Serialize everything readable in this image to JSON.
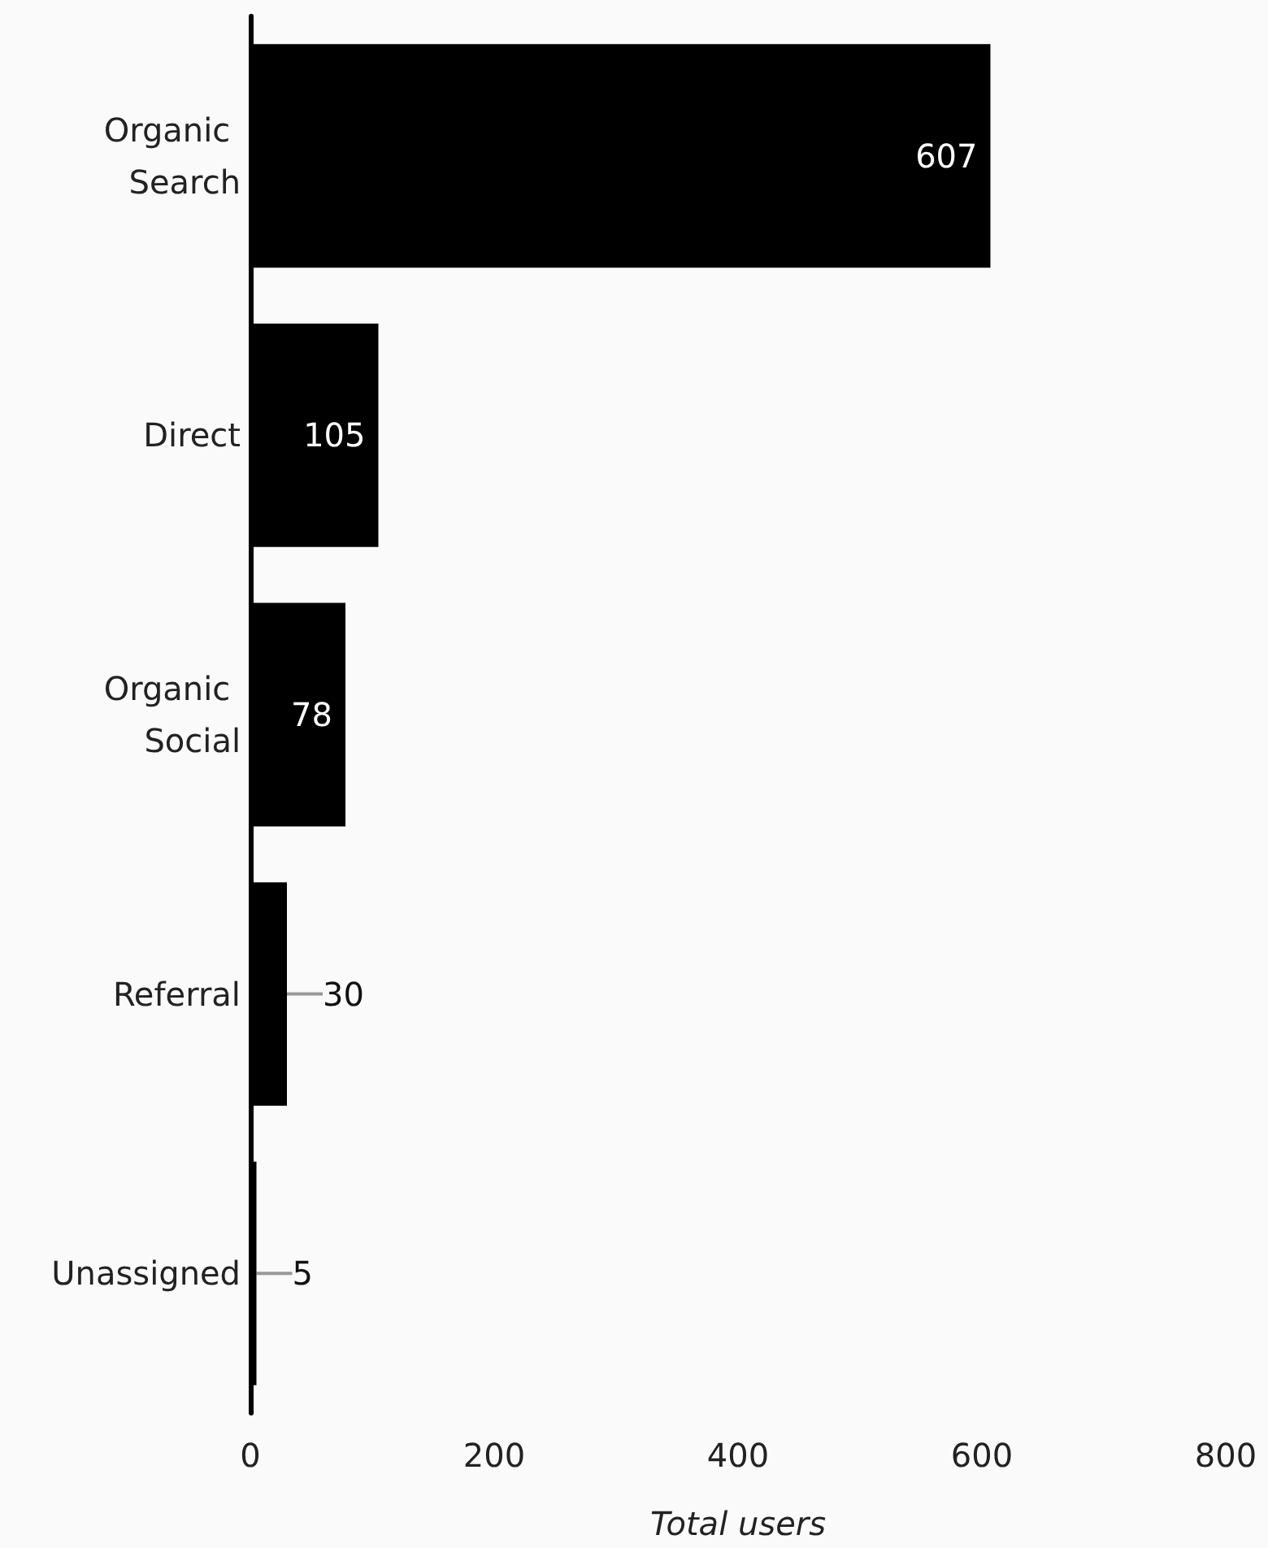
{
  "chart_data": {
    "type": "bar",
    "orientation": "horizontal",
    "categories": [
      "Organic Search",
      "Direct",
      "Organic Social",
      "Referral",
      "Unassigned"
    ],
    "values": [
      607,
      105,
      78,
      30,
      5
    ],
    "color": "#000000",
    "xlabel": "Total users",
    "xlim": [
      0,
      800
    ],
    "xticks": [
      0,
      200,
      400,
      600,
      800
    ],
    "data_labels": true
  }
}
